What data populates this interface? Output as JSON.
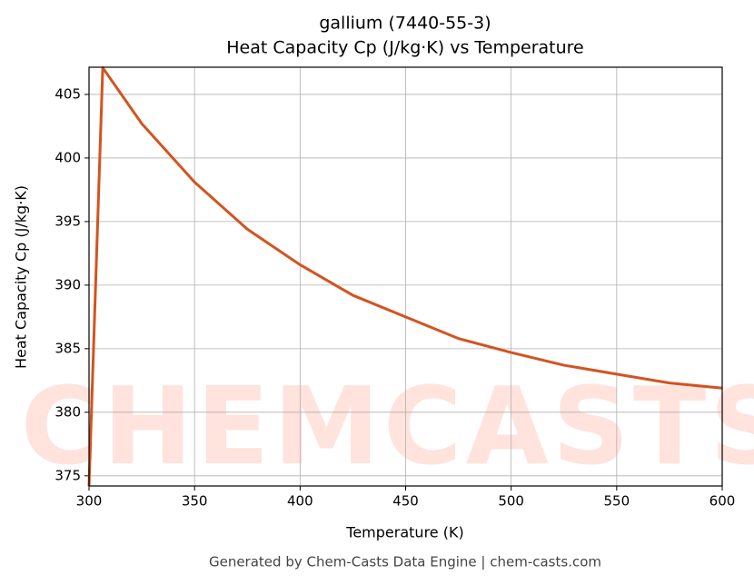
{
  "chart_data": {
    "type": "line",
    "title": "gallium (7440-55-3)",
    "subtitle": "Heat Capacity Cp (J/kg·K) vs Temperature",
    "x_label": "Temperature (K)",
    "y_label": "Heat Capacity Cp (J/kg·K)",
    "footer": "Generated by Chem-Casts Data Engine | chem-casts.com",
    "watermark": "CHEMCASTS",
    "x": [
      300,
      306.5,
      325,
      350,
      375,
      400,
      425,
      450,
      475,
      500,
      525,
      550,
      575,
      600
    ],
    "series": [
      {
        "name": "Cp",
        "color": "#d4531f",
        "values": [
          374.2,
          407.1,
          402.7,
          398.1,
          394.4,
          391.6,
          389.2,
          387.5,
          385.8,
          384.7,
          383.7,
          383.0,
          382.3,
          381.9
        ]
      }
    ],
    "xlim": [
      300,
      600
    ],
    "xticks": [
      300,
      350,
      400,
      450,
      500,
      550,
      600
    ],
    "ylim": [
      374.2,
      407.14
    ],
    "yticks": [
      375,
      380,
      385,
      390,
      395,
      400,
      405
    ],
    "grid": true
  }
}
